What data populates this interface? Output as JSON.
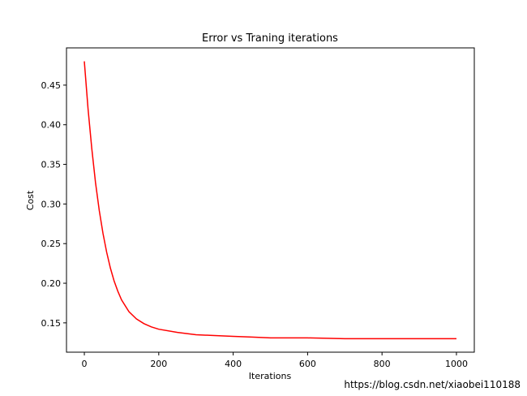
{
  "chart_data": {
    "type": "line",
    "title": "Error vs Traning iterations",
    "xlabel": "Iterations",
    "ylabel": "Cost",
    "xlim": [
      -48,
      1048
    ],
    "ylim": [
      0.113,
      0.497
    ],
    "xticks": [
      0,
      200,
      400,
      600,
      800,
      1000
    ],
    "yticks": [
      0.15,
      0.2,
      0.25,
      0.3,
      0.35,
      0.4,
      0.45
    ],
    "grid": false,
    "series": [
      {
        "color": "#ff0000",
        "x": [
          0,
          10,
          20,
          30,
          40,
          50,
          60,
          70,
          80,
          90,
          100,
          120,
          140,
          160,
          180,
          200,
          250,
          300,
          350,
          400,
          450,
          500,
          600,
          700,
          800,
          900,
          1000
        ],
        "y": [
          0.48,
          0.42,
          0.37,
          0.327,
          0.292,
          0.263,
          0.239,
          0.219,
          0.203,
          0.19,
          0.179,
          0.164,
          0.155,
          0.149,
          0.145,
          0.142,
          0.138,
          0.135,
          0.134,
          0.133,
          0.132,
          0.131,
          0.131,
          0.13,
          0.13,
          0.13,
          0.13
        ]
      }
    ]
  },
  "watermark": "https://blog.csdn.net/xiaobei110188"
}
